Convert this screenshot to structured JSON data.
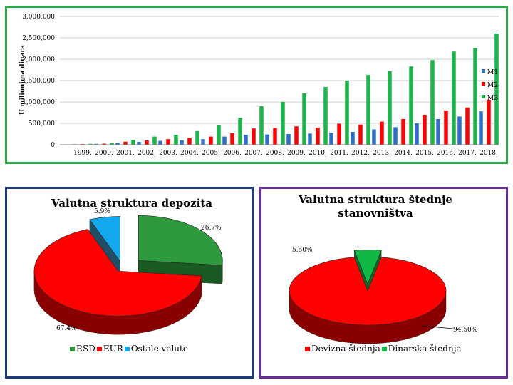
{
  "chart_data": [
    {
      "type": "bar",
      "title": "",
      "ylabel": "U milionima dinara",
      "xlabel": "",
      "categories": [
        "1999.",
        "2000.",
        "2001.",
        "2002.",
        "2003.",
        "2004.",
        "2005.",
        "2006.",
        "2007.",
        "2008.",
        "2009.",
        "2010.",
        "2011.",
        "2012.",
        "2013.",
        "2014.",
        "2015.",
        "2016.",
        "2017.",
        "2018."
      ],
      "ylim": [
        0,
        3000000
      ],
      "yticks": [
        "0",
        "500,000",
        "1,000,000",
        "1,500,000",
        "2,000,000",
        "2,500,000",
        "3,000,000"
      ],
      "ytick_values": [
        0,
        500000,
        1000000,
        1500000,
        2000000,
        2500000,
        3000000
      ],
      "legend_position": "right",
      "series": [
        {
          "name": "M1",
          "color": "#2e6fc4",
          "values": [
            12000,
            20000,
            45000,
            65000,
            90000,
            105000,
            130000,
            190000,
            230000,
            240000,
            250000,
            260000,
            280000,
            300000,
            360000,
            410000,
            500000,
            600000,
            660000,
            780000
          ]
        },
        {
          "name": "M2",
          "color": "#ff0000",
          "values": [
            15000,
            25000,
            70000,
            100000,
            130000,
            160000,
            190000,
            270000,
            380000,
            390000,
            430000,
            400000,
            490000,
            470000,
            540000,
            600000,
            700000,
            800000,
            870000,
            1050000
          ]
        },
        {
          "name": "M3",
          "color": "#20b24a",
          "values": [
            20000,
            45000,
            115000,
            190000,
            230000,
            320000,
            450000,
            630000,
            900000,
            1000000,
            1200000,
            1350000,
            1500000,
            1630000,
            1720000,
            1830000,
            1980000,
            2180000,
            2260000,
            2600000
          ]
        }
      ]
    },
    {
      "type": "pie",
      "title": "Valutna struktura depozita",
      "labels": [
        "RSD",
        "EUR",
        "Ostale valute"
      ],
      "values": [
        26.7,
        67.4,
        5.9
      ],
      "value_labels": [
        "26.7%",
        "67.4%",
        "5.9%"
      ],
      "colors": [
        "#2f9a3d",
        "#ff0000",
        "#14a8ec"
      ],
      "side_colors": [
        "#1a5a22",
        "#8a0000",
        "#1f4e66"
      ],
      "legend_position": "bottom"
    },
    {
      "type": "pie",
      "title": "Valutna struktura štednje stanovništva",
      "labels": [
        "Devizna štednja",
        "Dinarska štednja"
      ],
      "values": [
        94.5,
        5.5
      ],
      "value_labels": [
        "94.50%",
        "5.50%"
      ],
      "colors": [
        "#ff0000",
        "#10b845"
      ],
      "side_colors": [
        "#8a0000",
        "#0c6a28"
      ],
      "legend_position": "bottom"
    }
  ]
}
